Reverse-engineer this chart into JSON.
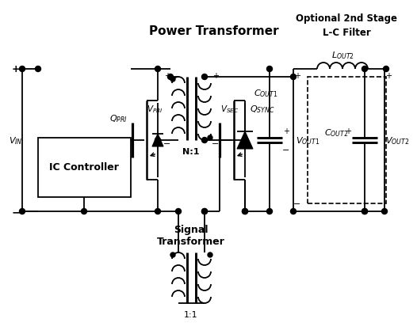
{
  "bg_color": "#ffffff",
  "lw": 1.3,
  "labels": {
    "power_transformer": "Power Transformer",
    "optional_2nd_stage": "Optional 2nd Stage",
    "lc_filter": "L-C Filter",
    "signal_transformer": "Signal\nTransformer",
    "ic_controller": "IC Controller",
    "vin": "$V_{IN}$",
    "vpri": "$V_{PRI}$",
    "vsec": "$V_{SEC}$",
    "qpri": "$Q_{PRI}$",
    "qsync": "$Q_{SYNC}$",
    "cout1": "$C_{OUT1}$",
    "cout2": "$C_{OUT2}$",
    "lout2": "$L_{OUT2}$",
    "vout1": "$V_{OUT1}$",
    "vout2": "$V_{OUT2}$",
    "n1": "N:1",
    "ratio": "1:1"
  }
}
